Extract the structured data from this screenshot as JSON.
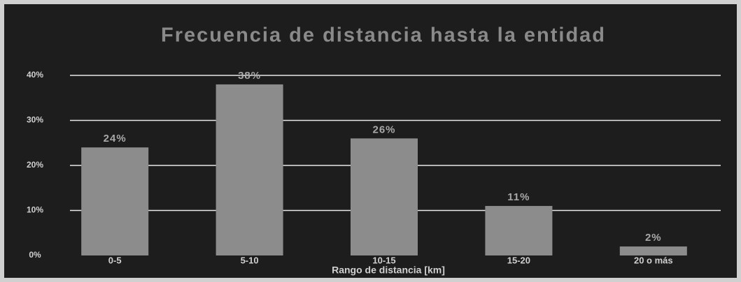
{
  "chart_data": {
    "type": "bar",
    "title": "Frecuencia de distancia hasta la entidad",
    "x_label": "Rango de distancia [km]",
    "categories": [
      "0-5",
      "5-10",
      "10-15",
      "15-20",
      "20 o más"
    ],
    "values": [
      24,
      38,
      26,
      11,
      2
    ],
    "value_labels": [
      "24%",
      "38%",
      "26%",
      "11%",
      "2%"
    ],
    "color": "#8c8c8c",
    "ylim": [
      0,
      40
    ],
    "yticks": [
      {
        "value": 0,
        "label": "0%"
      },
      {
        "value": 10,
        "label": "10%"
      },
      {
        "value": 20,
        "label": "20%"
      },
      {
        "value": 30,
        "label": "30%"
      },
      {
        "value": 40,
        "label": "40%"
      }
    ],
    "grid": true
  }
}
